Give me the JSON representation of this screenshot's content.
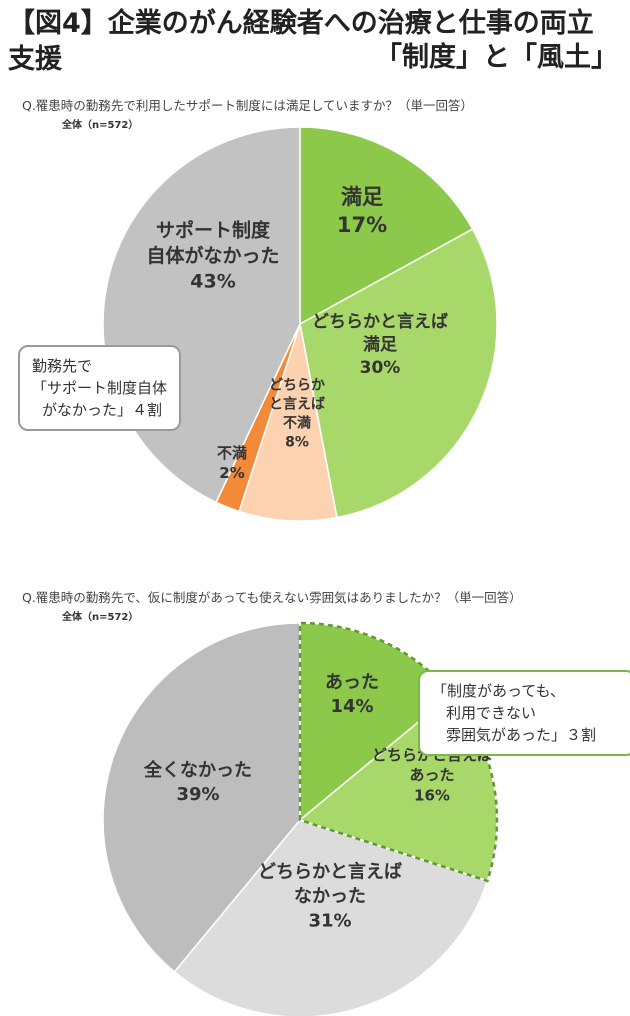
{
  "header": {
    "title_line1": "【図4】企業のがん経験者への治療と仕事の両立支援",
    "title_line2": "「制度」と「風土」"
  },
  "chart_data": [
    {
      "type": "pie",
      "question": "Q.罹患時の勤務先で利用したサポート制度には満足していますか？（単一回答）",
      "sample": "全体（n=572）",
      "slices": [
        {
          "label_lines": [
            "満足"
          ],
          "value": 17,
          "value_label": "17%",
          "color": "#8cc94a"
        },
        {
          "label_lines": [
            "どちらかと言えば",
            "満足"
          ],
          "value": 30,
          "value_label": "30%",
          "color": "#a8d86a"
        },
        {
          "label_lines": [
            "どちらか",
            "と言えば",
            "不満"
          ],
          "value": 8,
          "value_label": "8%",
          "color": "#fcd2b0"
        },
        {
          "label_lines": [
            "不満"
          ],
          "value": 2,
          "value_label": "2%",
          "color": "#f28a3a"
        },
        {
          "label_lines": [
            "サポート制度",
            "自体がなかった"
          ],
          "value": 43,
          "value_label": "43%",
          "color": "#c2c2c2"
        }
      ],
      "callout_lines": [
        "勤務先で",
        "「サポート制度自体",
        "がなかった」４割"
      ]
    },
    {
      "type": "pie",
      "question": "Q.罹患時の勤務先で、仮に制度があっても使えない雰囲気はありましたか？（単一回答）",
      "sample": "全体（n=572）",
      "slices": [
        {
          "label_lines": [
            "あった"
          ],
          "value": 14,
          "value_label": "14%",
          "color": "#8cc94a"
        },
        {
          "label_lines": [
            "どちらかと言えば",
            "あった"
          ],
          "value": 16,
          "value_label": "16%",
          "color": "#a8d86a"
        },
        {
          "label_lines": [
            "どちらかと言えば",
            "なかった"
          ],
          "value": 31,
          "value_label": "31%",
          "color": "#dcdcdc"
        },
        {
          "label_lines": [
            "全くなかった"
          ],
          "value": 39,
          "value_label": "39%",
          "color": "#bdbdbd"
        }
      ],
      "callout_lines": [
        "「制度があっても、",
        "利用できない",
        "雰囲気があった」３割"
      ]
    }
  ]
}
